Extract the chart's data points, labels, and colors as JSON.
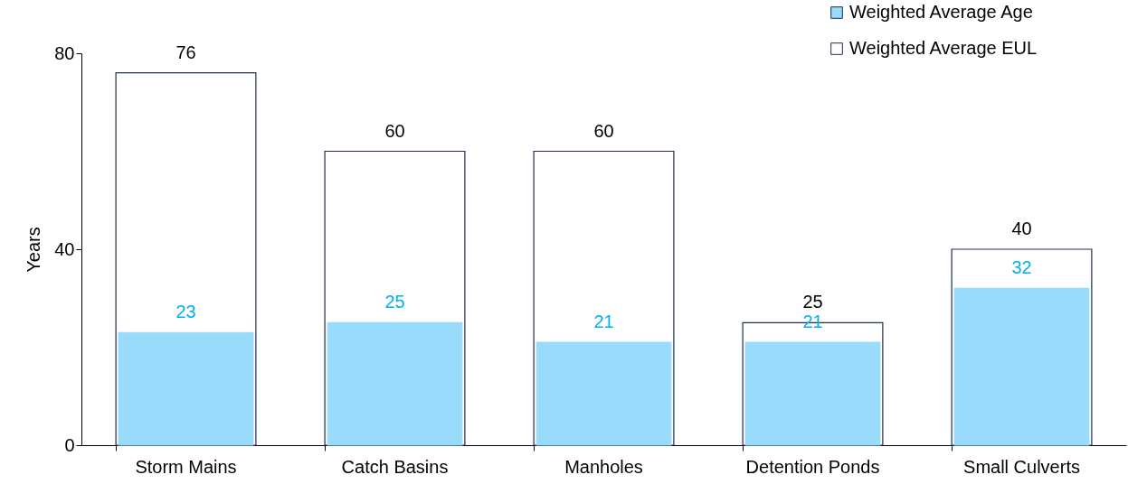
{
  "chart_data": {
    "type": "bar",
    "ylabel": "Years",
    "categories": [
      "Storm Mains",
      "Catch Basins",
      "Manholes",
      "Detention Ponds",
      "Small Culverts"
    ],
    "series": [
      {
        "name": "Weighted Average Age",
        "color": "#99dbfb",
        "values": [
          23,
          25,
          21,
          21,
          32
        ]
      },
      {
        "name": "Weighted Average EUL",
        "color": "#ffffff",
        "values": [
          76,
          60,
          60,
          25,
          40
        ]
      }
    ],
    "ylim": [
      0,
      80
    ],
    "yticks": [
      0,
      40,
      80
    ],
    "data_labels": true,
    "legend": "top right",
    "grid": false
  }
}
